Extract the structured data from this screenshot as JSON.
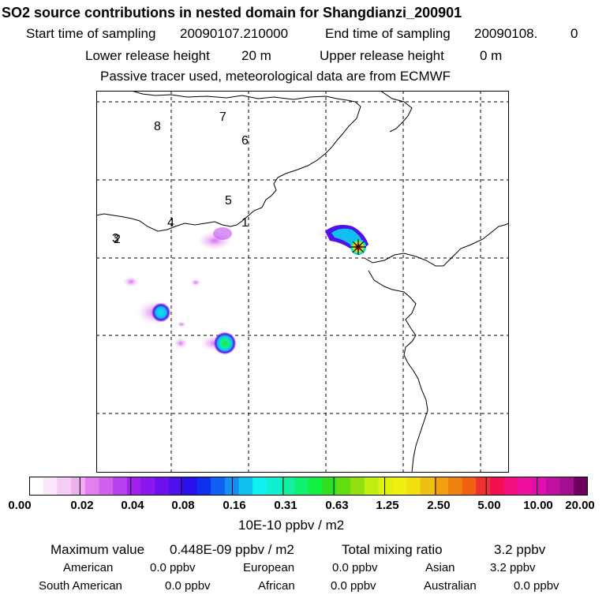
{
  "header": {
    "title": "SO2 source contributions in nested domain for Shangdianzi_200901",
    "start_label": "Start time of sampling",
    "start_value": "20090107.210000",
    "end_label": "End time of sampling",
    "end_value": "20090108.",
    "end_extra": "0",
    "lower_label": "Lower release height",
    "lower_value": "20 m",
    "upper_label": "Upper release height",
    "upper_value": "0 m",
    "tracer_note": "Passive tracer used, meteorological data are from ECMWF"
  },
  "map": {
    "labels": [
      "8",
      "7",
      "6",
      "5",
      "4",
      "1",
      "3",
      "2"
    ],
    "colors": {
      "frame": "#000000",
      "grid": "#000000",
      "coast": "#000000"
    }
  },
  "colorbar": {
    "ticks": [
      "0.00",
      "0.02",
      "0.04",
      "0.08",
      "0.16",
      "0.31",
      "0.63",
      "1.25",
      "2.50",
      "5.00",
      "10.00",
      "20.00"
    ],
    "unit": "10E-10 ppbv / m2",
    "colors": [
      "#ffffff",
      "#fbe6fb",
      "#f5ccf5",
      "#eeb0ee",
      "#e480ee",
      "#d060ee",
      "#b840ee",
      "#a020ee",
      "#8a18ee",
      "#6e10ee",
      "#5010ee",
      "#2a10ee",
      "#1030ee",
      "#1060f0",
      "#1090f0",
      "#10c0f0",
      "#10f0f0",
      "#10f0d0",
      "#10f0a0",
      "#10f070",
      "#10f040",
      "#30e020",
      "#60e010",
      "#90e010",
      "#c0f010",
      "#e0f010",
      "#f0f010",
      "#f0e010",
      "#f0c010",
      "#f0a010",
      "#f08010",
      "#f06010",
      "#f03030",
      "#f01050",
      "#f01080",
      "#f010a0",
      "#e010b0",
      "#c010a0",
      "#a01090",
      "#700060"
    ]
  },
  "summary": {
    "max_label": "Maximum value",
    "max_value": "0.448E-09 ppbv / m2",
    "total_label": "Total mixing ratio",
    "total_value": "3.2 ppbv",
    "regions": [
      {
        "name": "American",
        "value": "0.0 ppbv"
      },
      {
        "name": "European",
        "value": "0.0 ppbv"
      },
      {
        "name": "Asian",
        "value": "3.2 ppbv"
      },
      {
        "name": "South American",
        "value": "0.0 ppbv"
      },
      {
        "name": "African",
        "value": "0.0 ppbv"
      },
      {
        "name": "Australian",
        "value": "0.0 ppbv"
      }
    ]
  }
}
